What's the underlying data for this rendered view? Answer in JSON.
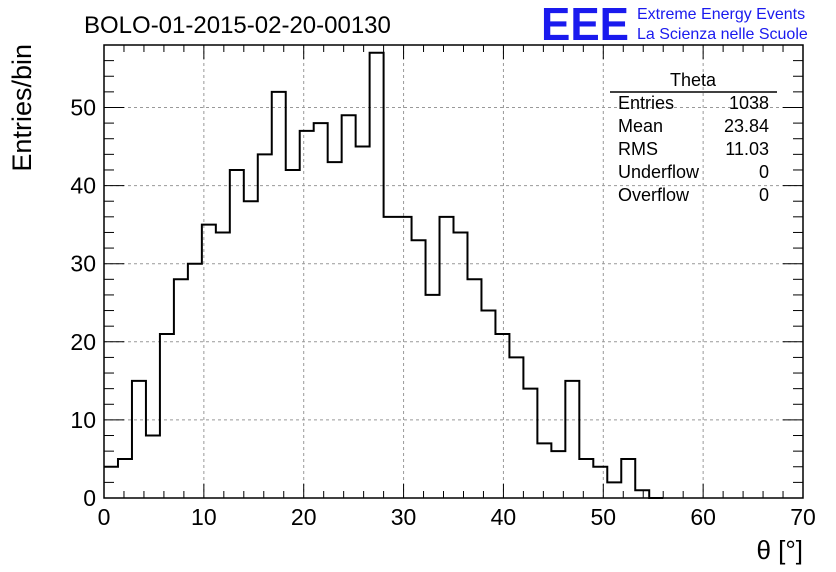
{
  "chart_data": {
    "type": "bar",
    "title": "BOLO-01-2015-02-20-00130",
    "xlabel": "θ [°]",
    "ylabel": "Entries/bin",
    "xlim": [
      0,
      70
    ],
    "ylim": [
      0,
      58
    ],
    "grid": true,
    "bin_width": 1.4,
    "bin_edges_start": 0,
    "values": [
      4,
      5,
      15,
      8,
      21,
      28,
      30,
      35,
      34,
      42,
      38,
      44,
      52,
      42,
      47,
      48,
      43,
      49,
      45,
      57,
      36,
      36,
      33,
      26,
      36,
      34,
      28,
      24,
      21,
      18,
      14,
      7,
      6,
      15,
      5,
      4,
      2,
      5,
      1,
      0
    ],
    "x_ticks": [
      "0",
      "10",
      "20",
      "30",
      "40",
      "50",
      "60",
      "70"
    ],
    "y_ticks": [
      "0",
      "10",
      "20",
      "30",
      "40",
      "50"
    ],
    "stats_box": {
      "title": "Theta",
      "rows": [
        {
          "label": "Entries",
          "value": "1038"
        },
        {
          "label": "Mean",
          "value": "23.84"
        },
        {
          "label": "RMS",
          "value": "11.03"
        },
        {
          "label": "Underflow",
          "value": "0"
        },
        {
          "label": "Overflow",
          "value": "0"
        }
      ]
    }
  },
  "logo": {
    "mark": "EEE",
    "line1": "Extreme Energy Events",
    "line2": "La Scienza nelle Scuole",
    "color": "#1a1aee"
  },
  "colors": {
    "histogram": "#000000",
    "grid": "#999999"
  }
}
